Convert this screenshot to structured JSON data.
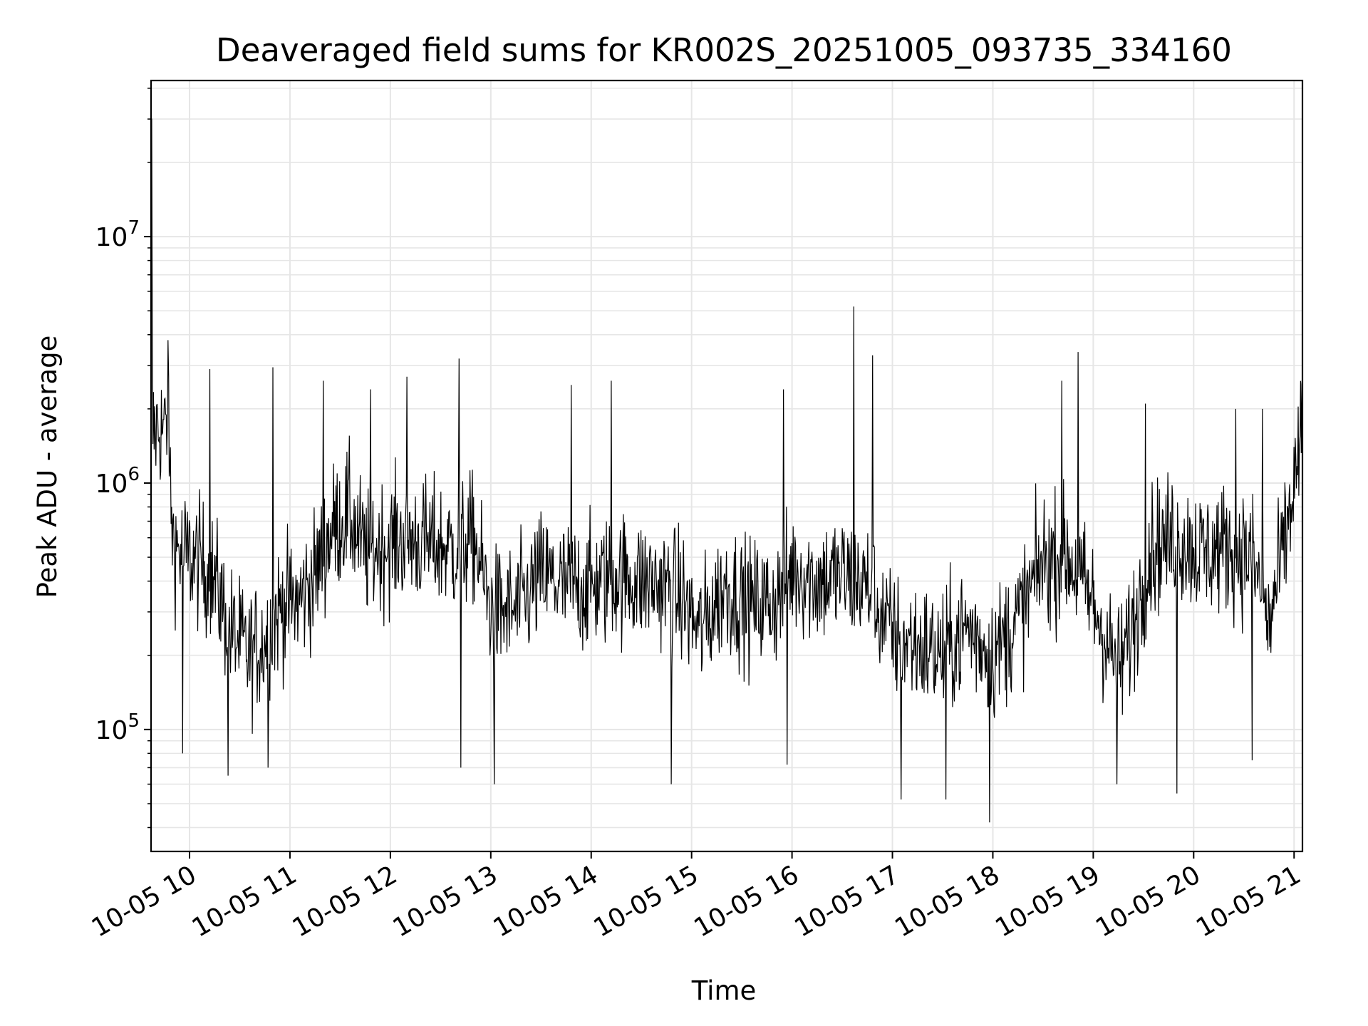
{
  "chart_data": {
    "type": "line",
    "title": "Deaveraged field sums for KR002S_20251005_093735_334160",
    "xlabel": "Time",
    "ylabel": "Peak ADU - average",
    "x_scale": "time",
    "y_scale": "log",
    "grid": true,
    "legend": "none",
    "line_color": "#000000",
    "grid_color": "#e6e6e6",
    "xlim": [
      "2025-10-05 09:37",
      "2025-10-05 21:05"
    ],
    "ylim": [
      32000,
      43000000
    ],
    "x_ticks": [
      {
        "value": "2025-10-05 10:00",
        "label": "10-05 10"
      },
      {
        "value": "2025-10-05 11:00",
        "label": "10-05 11"
      },
      {
        "value": "2025-10-05 12:00",
        "label": "10-05 12"
      },
      {
        "value": "2025-10-05 13:00",
        "label": "10-05 13"
      },
      {
        "value": "2025-10-05 14:00",
        "label": "10-05 14"
      },
      {
        "value": "2025-10-05 15:00",
        "label": "10-05 15"
      },
      {
        "value": "2025-10-05 16:00",
        "label": "10-05 16"
      },
      {
        "value": "2025-10-05 17:00",
        "label": "10-05 17"
      },
      {
        "value": "2025-10-05 18:00",
        "label": "10-05 18"
      },
      {
        "value": "2025-10-05 19:00",
        "label": "10-05 19"
      },
      {
        "value": "2025-10-05 20:00",
        "label": "10-05 20"
      },
      {
        "value": "2025-10-05 21:00",
        "label": "10-05 21"
      }
    ],
    "y_ticks": [
      {
        "value": 100000,
        "base": "10",
        "exp": "5"
      },
      {
        "value": 1000000,
        "base": "10",
        "exp": "6"
      },
      {
        "value": 10000000,
        "base": "10",
        "exp": "7"
      }
    ],
    "series": [
      {
        "x": [
          "2025-10-05 09:37",
          "2025-10-05 09:38",
          "2025-10-05 09:42",
          "2025-10-05 09:45",
          "2025-10-05 09:47",
          "2025-10-05 09:50",
          "2025-10-05 09:52",
          "2025-10-05 09:55",
          "2025-10-05 10:00",
          "2025-10-05 10:05",
          "2025-10-05 10:15",
          "2025-10-05 10:25",
          "2025-10-05 10:35",
          "2025-10-05 10:45",
          "2025-10-05 10:55",
          "2025-10-05 11:05",
          "2025-10-05 11:15",
          "2025-10-05 11:25",
          "2025-10-05 11:35",
          "2025-10-05 11:45",
          "2025-10-05 11:55",
          "2025-10-05 12:10",
          "2025-10-05 12:25",
          "2025-10-05 12:40",
          "2025-10-05 12:50",
          "2025-10-05 13:00",
          "2025-10-05 13:15",
          "2025-10-05 13:30",
          "2025-10-05 13:45",
          "2025-10-05 14:00",
          "2025-10-05 14:15",
          "2025-10-05 14:30",
          "2025-10-05 14:45",
          "2025-10-05 14:55",
          "2025-10-05 15:05",
          "2025-10-05 15:20",
          "2025-10-05 15:35",
          "2025-10-05 15:50",
          "2025-10-05 16:00",
          "2025-10-05 16:15",
          "2025-10-05 16:30",
          "2025-10-05 16:45",
          "2025-10-05 17:00",
          "2025-10-05 17:15",
          "2025-10-05 17:30",
          "2025-10-05 17:45",
          "2025-10-05 18:00",
          "2025-10-05 18:15",
          "2025-10-05 18:30",
          "2025-10-05 18:45",
          "2025-10-05 19:00",
          "2025-10-05 19:15",
          "2025-10-05 19:25",
          "2025-10-05 19:35",
          "2025-10-05 19:50",
          "2025-10-05 20:05",
          "2025-10-05 20:20",
          "2025-10-05 20:35",
          "2025-10-05 20:45",
          "2025-10-05 20:55",
          "2025-10-05 21:05"
        ],
        "y": [
          30000000,
          1600000,
          1700000,
          1650000,
          1600000,
          600000,
          550000,
          520000,
          500000,
          480000,
          400000,
          250000,
          200000,
          230000,
          320000,
          330000,
          420000,
          650000,
          750000,
          520000,
          560000,
          600000,
          560000,
          540000,
          600000,
          300000,
          300000,
          420000,
          380000,
          380000,
          420000,
          400000,
          380000,
          330000,
          250000,
          380000,
          320000,
          330000,
          450000,
          400000,
          420000,
          380000,
          240000,
          220000,
          200000,
          260000,
          200000,
          280000,
          480000,
          500000,
          320000,
          170000,
          280000,
          550000,
          600000,
          520000,
          550000,
          500000,
          260000,
          600000,
          1600000
        ]
      }
    ],
    "spikes": [
      {
        "x": "2025-10-05 09:47",
        "y": 3800000
      },
      {
        "x": "2025-10-05 10:12",
        "y": 2900000
      },
      {
        "x": "2025-10-05 10:50",
        "y": 2950000
      },
      {
        "x": "2025-10-05 11:20",
        "y": 2600000
      },
      {
        "x": "2025-10-05 11:48",
        "y": 2400000
      },
      {
        "x": "2025-10-05 12:10",
        "y": 2700000
      },
      {
        "x": "2025-10-05 12:41",
        "y": 3200000
      },
      {
        "x": "2025-10-05 13:48",
        "y": 2500000
      },
      {
        "x": "2025-10-05 14:12",
        "y": 2600000
      },
      {
        "x": "2025-10-05 15:55",
        "y": 2400000
      },
      {
        "x": "2025-10-05 16:37",
        "y": 5200000
      },
      {
        "x": "2025-10-05 16:48",
        "y": 3300000
      },
      {
        "x": "2025-10-05 18:41",
        "y": 2600000
      },
      {
        "x": "2025-10-05 18:51",
        "y": 3400000
      },
      {
        "x": "2025-10-05 19:31",
        "y": 2100000
      },
      {
        "x": "2025-10-05 20:25",
        "y": 2000000
      },
      {
        "x": "2025-10-05 20:41",
        "y": 2000000
      },
      {
        "x": "2025-10-05 21:05",
        "y": 2700000
      }
    ],
    "dips": [
      {
        "x": "2025-10-05 09:56",
        "y": 80000
      },
      {
        "x": "2025-10-05 10:23",
        "y": 65000
      },
      {
        "x": "2025-10-05 10:47",
        "y": 70000
      },
      {
        "x": "2025-10-05 12:42",
        "y": 70000
      },
      {
        "x": "2025-10-05 13:02",
        "y": 60000
      },
      {
        "x": "2025-10-05 14:48",
        "y": 60000
      },
      {
        "x": "2025-10-05 15:57",
        "y": 72000
      },
      {
        "x": "2025-10-05 17:05",
        "y": 52000
      },
      {
        "x": "2025-10-05 17:32",
        "y": 52000
      },
      {
        "x": "2025-10-05 17:58",
        "y": 42000
      },
      {
        "x": "2025-10-05 19:14",
        "y": 60000
      },
      {
        "x": "2025-10-05 19:50",
        "y": 55000
      },
      {
        "x": "2025-10-05 20:35",
        "y": 75000
      }
    ]
  }
}
